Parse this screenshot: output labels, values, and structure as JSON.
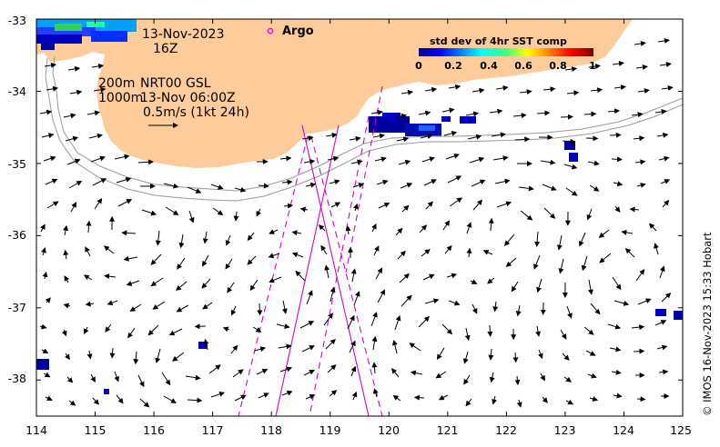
{
  "map": {
    "date": "13-Nov-2023",
    "hour": "16Z",
    "argo_label": "Argo",
    "contour_label_200": "200m",
    "contour_label_1000": "1000m",
    "model_label": "NRT00 GSL",
    "model_time": "13-Nov 06:00Z",
    "scale_label": "0.5m/s (1kt 24h)",
    "credit": "© IMOS 16-Nov-2023 15:33 Hobart",
    "x_ticks": [
      "114",
      "115",
      "116",
      "117",
      "118",
      "119",
      "120",
      "121",
      "122",
      "123",
      "124",
      "125"
    ],
    "y_ticks": [
      "-33",
      "-34",
      "-35",
      "-36",
      "-37",
      "-38"
    ],
    "lon_range": [
      114,
      125
    ],
    "lat_range": [
      -38.5,
      -33
    ],
    "land_color": "#fdcc9a",
    "colorbar": {
      "title": "std dev of 4hr SST comp",
      "ticks": [
        "0",
        "0.2",
        "0.4",
        "0.6",
        "0.8",
        "1"
      ]
    }
  }
}
